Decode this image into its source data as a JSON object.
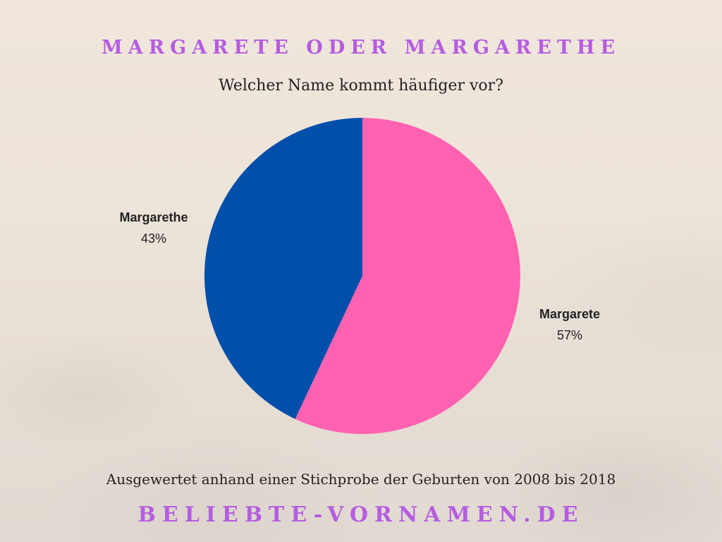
{
  "header": {
    "title": "MARGARETE ODER MARGARETHE",
    "subtitle": "Welcher Name kommt häufiger vor?"
  },
  "footer": {
    "note": "Ausgewertet anhand einer Stichprobe der Geburten von 2008 bis 2018",
    "brand": "BELIEBTE-VORNAMEN.DE"
  },
  "colors": {
    "accent_title": "#b55de0",
    "text": "#222222",
    "background": "#efe5da"
  },
  "chart_data": {
    "type": "pie",
    "title": "MARGARETE ODER MARGARETHE",
    "subtitle": "Welcher Name kommt häufiger vor?",
    "categories": [
      "Margarete",
      "Margarethe"
    ],
    "values": [
      57,
      43
    ],
    "unit": "%",
    "colors": [
      "#ff62b0",
      "#004fab"
    ],
    "labels": [
      {
        "name": "Margarete",
        "value": "57%",
        "position": "right"
      },
      {
        "name": "Margarethe",
        "value": "43%",
        "position": "left"
      }
    ],
    "start_angle": "12 o'clock",
    "direction": "Margarete clockwise from top, Margarethe counter-clockwise from top",
    "legend": "none (direct labels)",
    "note": "Ausgewertet anhand einer Stichprobe der Geburten von 2008 bis 2018"
  }
}
